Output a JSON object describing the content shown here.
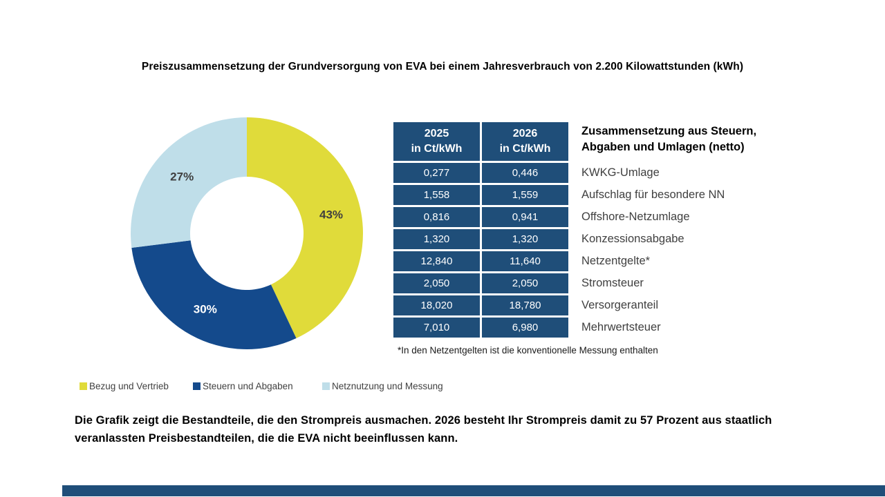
{
  "title": "Preiszusammensetzung der Grundversorgung von EVA bei einem Jahresverbrauch von 2.200 Kilowattstunden (kWh)",
  "chart_data": {
    "type": "pie",
    "donut": true,
    "start_angle_deg": 0,
    "direction": "clockwise",
    "title": "Preiszusammensetzung der Grundversorgung",
    "slices": [
      {
        "label": "Bezug und Vertrieb",
        "value": 43,
        "display": "43%",
        "color": "#E0DB3A",
        "label_color": "#3F3F3F"
      },
      {
        "label": "Steuern und Abgaben",
        "value": 30,
        "display": "30%",
        "color": "#144A8C",
        "label_color": "#FFFFFF"
      },
      {
        "label": "Netznutzung und Messung",
        "value": 27,
        "display": "27%",
        "color": "#BFDEE9",
        "label_color": "#3F3F3F"
      }
    ]
  },
  "table": {
    "col_headers": [
      {
        "year": "2025",
        "unit": "in Ct/kWh"
      },
      {
        "year": "2026",
        "unit": "in Ct/kWh"
      }
    ],
    "row_header": {
      "line1": "Zusammensetzung aus Steuern,",
      "line2": "Abgaben und Umlagen (netto)"
    },
    "rows": [
      {
        "y2025": "0,277",
        "y2026": "0,446",
        "label": "KWKG-Umlage"
      },
      {
        "y2025": "1,558",
        "y2026": "1,559",
        "label": "Aufschlag für besondere NN"
      },
      {
        "y2025": "0,816",
        "y2026": "0,941",
        "label": "Offshore-Netzumlage"
      },
      {
        "y2025": "1,320",
        "y2026": "1,320",
        "label": "Konzessionsabgabe"
      },
      {
        "y2025": "12,840",
        "y2026": "11,640",
        "label": "Netzentgelte*"
      },
      {
        "y2025": "2,050",
        "y2026": "2,050",
        "label": "Stromsteuer"
      },
      {
        "y2025": "18,020",
        "y2026": "18,780",
        "label": "Versorgeranteil"
      },
      {
        "y2025": "7,010",
        "y2026": "6,980",
        "label": "Mehrwertsteuer"
      }
    ],
    "footnote": "*In den Netzentgelten ist die konventionelle Messung enthalten"
  },
  "footer": {
    "text": "Die Grafik zeigt die Bestandteile, die den Strompreis ausmachen. 2026 besteht Ihr Strompreis damit zu 57 Prozent aus staatlich veranlassten Preisbestandteilen, die die EVA nicht beeinflussen kann."
  },
  "colors": {
    "table_navy": "#1F4E79",
    "pie_navy": "#144A8C",
    "pie_yellow": "#E0DB3A",
    "pie_lightblue": "#BFDEE9",
    "bottom_bar": "#1F4E79"
  }
}
